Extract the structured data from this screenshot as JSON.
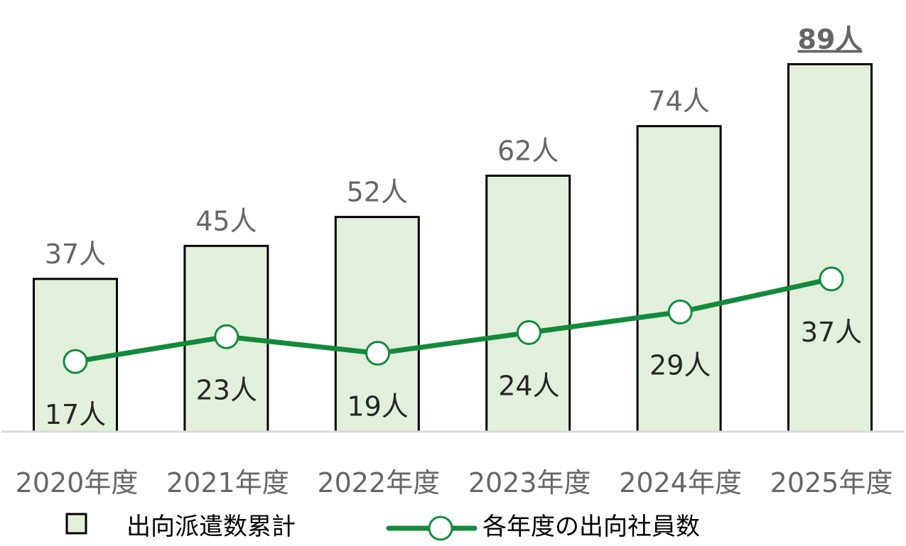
{
  "chart_data": {
    "type": "bar",
    "categories": [
      "2020年度",
      "2021年度",
      "2022年度",
      "2023年度",
      "2024年度",
      "2025年度"
    ],
    "series": [
      {
        "name": "出向派遣数累計",
        "type": "bar",
        "values": [
          37,
          45,
          52,
          62,
          74,
          89
        ],
        "labels": [
          "37人",
          "45人",
          "52人",
          "62人",
          "74人",
          "89人"
        ],
        "color": "#e2efda",
        "highlight_last": true
      },
      {
        "name": "各年度の出向社員数",
        "type": "line",
        "values": [
          17,
          23,
          19,
          24,
          29,
          37
        ],
        "labels": [
          "17人",
          "23人",
          "19人",
          "24人",
          "29人",
          "37人"
        ],
        "color": "#128a3c"
      }
    ],
    "ylim": [
      0,
      92
    ],
    "grid": false,
    "legend": "bottom"
  }
}
